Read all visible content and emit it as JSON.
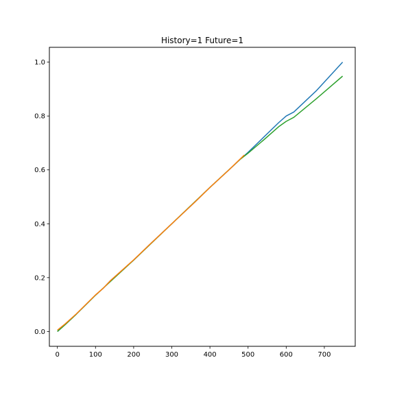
{
  "chart_data": {
    "type": "line",
    "title": "History=1 Future=1",
    "xlabel": "",
    "ylabel": "",
    "xlim": [
      -21,
      781
    ],
    "ylim": [
      -0.055,
      1.055
    ],
    "xticks": [
      0,
      100,
      200,
      300,
      400,
      500,
      600,
      700
    ],
    "xtick_labels": [
      "0",
      "100",
      "200",
      "300",
      "400",
      "500",
      "600",
      "700"
    ],
    "yticks": [
      0.0,
      0.2,
      0.4,
      0.6,
      0.8,
      1.0
    ],
    "ytick_labels": [
      "0.0",
      "0.2",
      "0.4",
      "0.6",
      "0.8",
      "1.0"
    ],
    "grid": false,
    "series": [
      {
        "color": "#1f77b4",
        "x": [
          0,
          20,
          50,
          100,
          120,
          140,
          200,
          240,
          300,
          360,
          400,
          450,
          480,
          500,
          540,
          580,
          600,
          620,
          680,
          748
        ],
        "y": [
          0.0,
          0.025,
          0.065,
          0.135,
          0.16,
          0.19,
          0.265,
          0.32,
          0.4,
          0.48,
          0.535,
          0.6,
          0.64,
          0.665,
          0.72,
          0.775,
          0.8,
          0.815,
          0.895,
          1.0
        ]
      },
      {
        "color": "#2ca02c",
        "x": [
          0,
          20,
          50,
          100,
          200,
          300,
          400,
          480,
          500,
          540,
          580,
          600,
          620,
          680,
          748
        ],
        "y": [
          0.0,
          0.025,
          0.065,
          0.135,
          0.265,
          0.4,
          0.535,
          0.64,
          0.662,
          0.71,
          0.76,
          0.78,
          0.795,
          0.865,
          0.948
        ]
      },
      {
        "color": "#ff7f0e",
        "x": [
          0,
          20,
          50,
          100,
          120,
          140,
          200,
          240,
          300,
          360,
          400,
          450,
          490
        ],
        "y": [
          0.005,
          0.028,
          0.066,
          0.136,
          0.16,
          0.19,
          0.266,
          0.32,
          0.4,
          0.48,
          0.535,
          0.6,
          0.655
        ]
      }
    ]
  }
}
